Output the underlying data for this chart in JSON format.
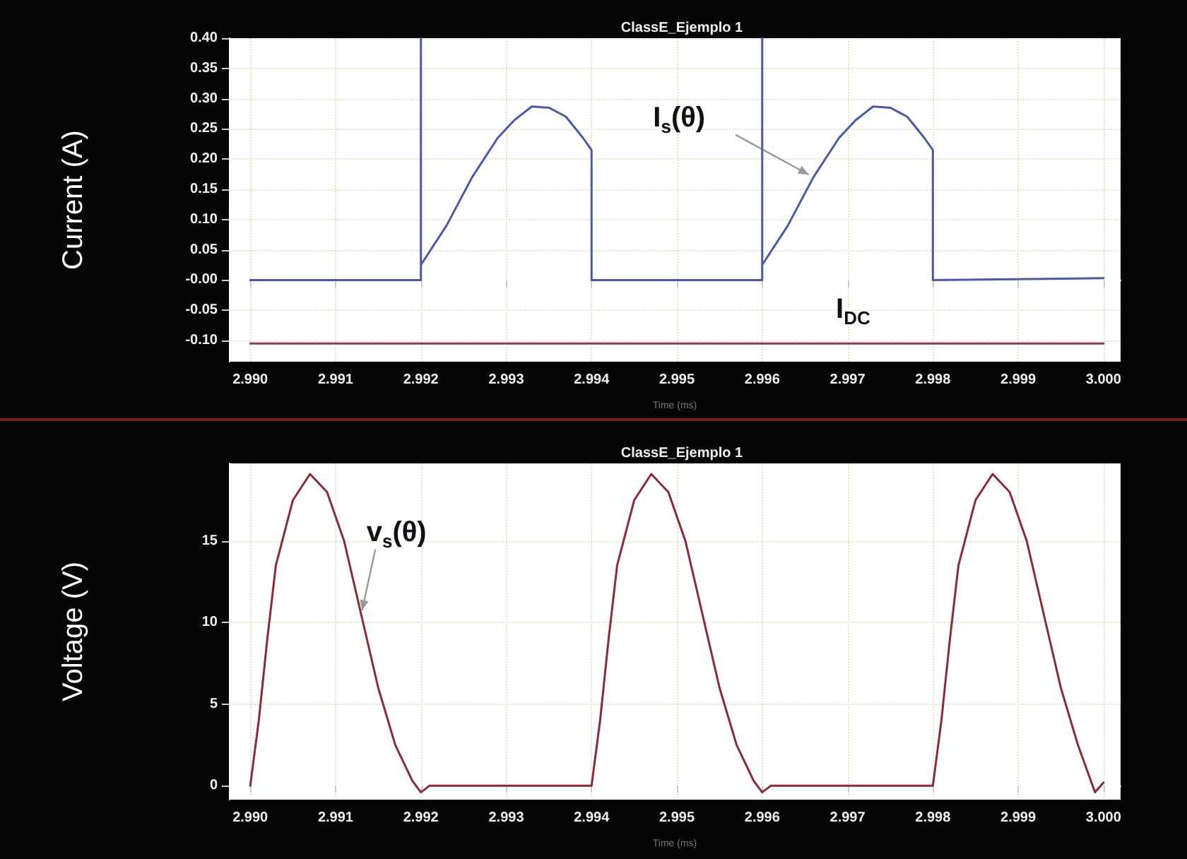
{
  "chart_data": [
    {
      "type": "line",
      "title": "ClassE_Ejemplo 1",
      "xlabel": "Time (ms)",
      "ylabel": "Current (A)",
      "grid": true,
      "legend": false,
      "marker": "none",
      "xlim": [
        2.98975,
        3.0002
      ],
      "xticks": [
        {
          "value": 2.99,
          "label": "2.990"
        },
        {
          "value": 2.991,
          "label": "2.991"
        },
        {
          "value": 2.992,
          "label": "2.992"
        },
        {
          "value": 2.993,
          "label": "2.993"
        },
        {
          "value": 2.994,
          "label": "2.994"
        },
        {
          "value": 2.995,
          "label": "2.995"
        },
        {
          "value": 2.996,
          "label": "2.996"
        },
        {
          "value": 2.997,
          "label": "2.997"
        },
        {
          "value": 2.998,
          "label": "2.998"
        },
        {
          "value": 2.999,
          "label": "2.999"
        },
        {
          "value": 3.0,
          "label": "3.000"
        }
      ],
      "ylim": [
        -0.135,
        0.4
      ],
      "yticks": [
        {
          "value": 0.4,
          "label": "0.40"
        },
        {
          "value": 0.35,
          "label": "0.35"
        },
        {
          "value": 0.3,
          "label": "0.30"
        },
        {
          "value": 0.25,
          "label": "0.25"
        },
        {
          "value": 0.2,
          "label": "0.20"
        },
        {
          "value": 0.15,
          "label": "0.15"
        },
        {
          "value": 0.1,
          "label": "0.10"
        },
        {
          "value": 0.05,
          "label": "0.05"
        },
        {
          "value": 0,
          "label": "-0.00"
        },
        {
          "value": -0.05,
          "label": "-0.05"
        },
        {
          "value": -0.1,
          "label": "-0.10"
        }
      ],
      "series": [
        {
          "name": "I$_{s}$(θ)",
          "color": "#4a5aa8",
          "x": [
            2.99,
            2.992,
            2.992,
            2.992,
            2.9923,
            2.9926,
            2.9929,
            2.9931,
            2.9933,
            2.9935,
            2.9937,
            2.9939,
            2.994,
            2.994,
            2.996,
            2.996,
            2.996,
            2.9963,
            2.9966,
            2.9969,
            2.9971,
            2.9973,
            2.9975,
            2.9977,
            2.9979,
            2.998,
            2.998,
            3.0
          ],
          "values": [
            0,
            0,
            0.4,
            0.025,
            0.09,
            0.17,
            0.235,
            0.265,
            0.287,
            0.285,
            0.27,
            0.235,
            0.215,
            0,
            0,
            0.4,
            0.025,
            0.09,
            0.17,
            0.235,
            0.265,
            0.287,
            0.285,
            0.27,
            0.235,
            0.215,
            0,
            0.003
          ]
        },
        {
          "name": "I$_{DC}$",
          "color": "#8b3a5a",
          "x": [
            2.99,
            3.0
          ],
          "values": [
            -0.105,
            -0.105
          ]
        }
      ]
    },
    {
      "type": "line",
      "title": "ClassE_Ejemplo 1",
      "xlabel": "Time (ms)",
      "ylabel": "Voltage (V)",
      "grid": true,
      "legend": false,
      "marker": "none",
      "xlim": [
        2.98975,
        3.0002
      ],
      "xticks": [
        {
          "value": 2.99,
          "label": "2.990"
        },
        {
          "value": 2.991,
          "label": "2.991"
        },
        {
          "value": 2.992,
          "label": "2.992"
        },
        {
          "value": 2.993,
          "label": "2.993"
        },
        {
          "value": 2.994,
          "label": "2.994"
        },
        {
          "value": 2.995,
          "label": "2.995"
        },
        {
          "value": 2.996,
          "label": "2.996"
        },
        {
          "value": 2.997,
          "label": "2.997"
        },
        {
          "value": 2.998,
          "label": "2.998"
        },
        {
          "value": 2.999,
          "label": "2.999"
        },
        {
          "value": 3.0,
          "label": "3.000"
        }
      ],
      "ylim": [
        -0.85,
        19.75
      ],
      "yticks": [
        0,
        5,
        10,
        15
      ],
      "series": [
        {
          "name": "v$_{s}$(θ)",
          "color": "#8b2a3a",
          "x": [
            2.99,
            2.9901,
            2.9902,
            2.9903,
            2.9905,
            2.9907,
            2.9909,
            2.9911,
            2.9913,
            2.9915,
            2.9917,
            2.9919,
            2.992,
            2.9921,
            2.994,
            2.9941,
            2.9942,
            2.9943,
            2.9945,
            2.9947,
            2.9949,
            2.9951,
            2.9953,
            2.9955,
            2.9957,
            2.9959,
            2.996,
            2.9961,
            2.998,
            2.9981,
            2.9982,
            2.9983,
            2.9985,
            2.9987,
            2.9989,
            2.9991,
            2.9993,
            2.9995,
            2.9997,
            2.9999,
            3.0
          ],
          "values": [
            0,
            4,
            9,
            13.5,
            17.5,
            19.1,
            18,
            15,
            10.5,
            6,
            2.5,
            0.3,
            -0.4,
            0,
            0,
            4,
            9,
            13.5,
            17.5,
            19.1,
            18,
            15,
            10.5,
            6,
            2.5,
            0.3,
            -0.4,
            0,
            0,
            4,
            9,
            13.5,
            17.5,
            19.1,
            18,
            15,
            10.5,
            6,
            2.5,
            -0.4,
            0.2
          ]
        }
      ]
    }
  ]
}
